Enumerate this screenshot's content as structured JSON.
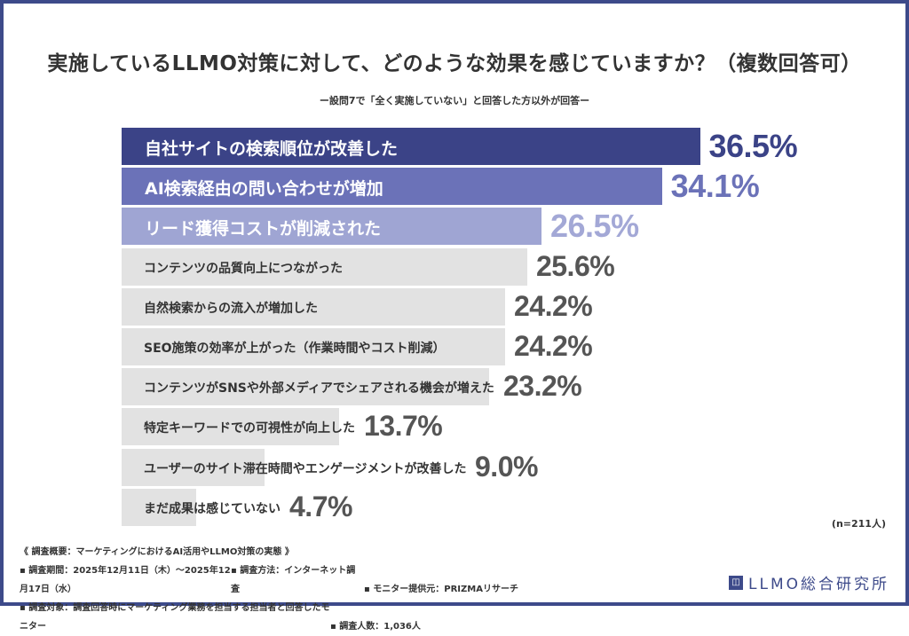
{
  "title": "実施しているLLMO対策に対して、どのような効果を感じていますか？（複数回答可）",
  "subtitle": "ー設問7で「全く実施していない」と回答した方以外が回答ー",
  "chart_data": {
    "type": "bar",
    "orientation": "horizontal",
    "categories": [
      "自社サイトの検索順位が改善した",
      "AI検索経由の問い合わせが増加",
      "リード獲得コストが削減された",
      "コンテンツの品質向上につながった",
      "自然検索からの流入が増加した",
      "SEO施策の効率が上がった（作業時間やコスト削減）",
      "コンテンツがSNSや外部メディアでシェアされる機会が増えた",
      "特定キーワードでの可視性が向上した",
      "ユーザーのサイト滞在時間やエンゲージメントが改善した",
      "まだ成果は感じていない"
    ],
    "values": [
      36.5,
      34.1,
      26.5,
      25.6,
      24.2,
      24.2,
      23.2,
      13.7,
      9.0,
      4.7
    ],
    "value_labels": [
      "36.5%",
      "34.1%",
      "26.5%",
      "25.6%",
      "24.2%",
      "24.2%",
      "23.2%",
      "13.7%",
      "9.0%",
      "4.7%"
    ],
    "bar_colors": [
      "#3b4387",
      "#6b72b8",
      "#9fa5d3",
      "#e2e2e2",
      "#e2e2e2",
      "#e2e2e2",
      "#e2e2e2",
      "#e2e2e2",
      "#e2e2e2",
      "#e2e2e2"
    ],
    "value_colors": [
      "#3b4387",
      "#6b72b8",
      "#a3a8d6",
      "#555555",
      "#555555",
      "#555555",
      "#555555",
      "#555555",
      "#555555",
      "#555555"
    ],
    "grid": false
  },
  "sample_size": "(n=211人)",
  "footer": {
    "heading": "《 調査概要：マーケティングにおけるAI活用やLLMO対策の実態 》",
    "period": "▪ 調査期間：2025年12月11日（木）～2025年12月17日（水）",
    "method": "▪ 調査方法：インターネット調査",
    "provider": "▪ モニター提供元：PRIZMAリサーチ",
    "target": "▪ 調査対象：調査回答時にマーケティング業務を担当する担当者と回答したモニター",
    "count": "▪ 調査人数：1,036人"
  },
  "logo": {
    "text": "LLMO総合研究所",
    "mark": "◫"
  }
}
